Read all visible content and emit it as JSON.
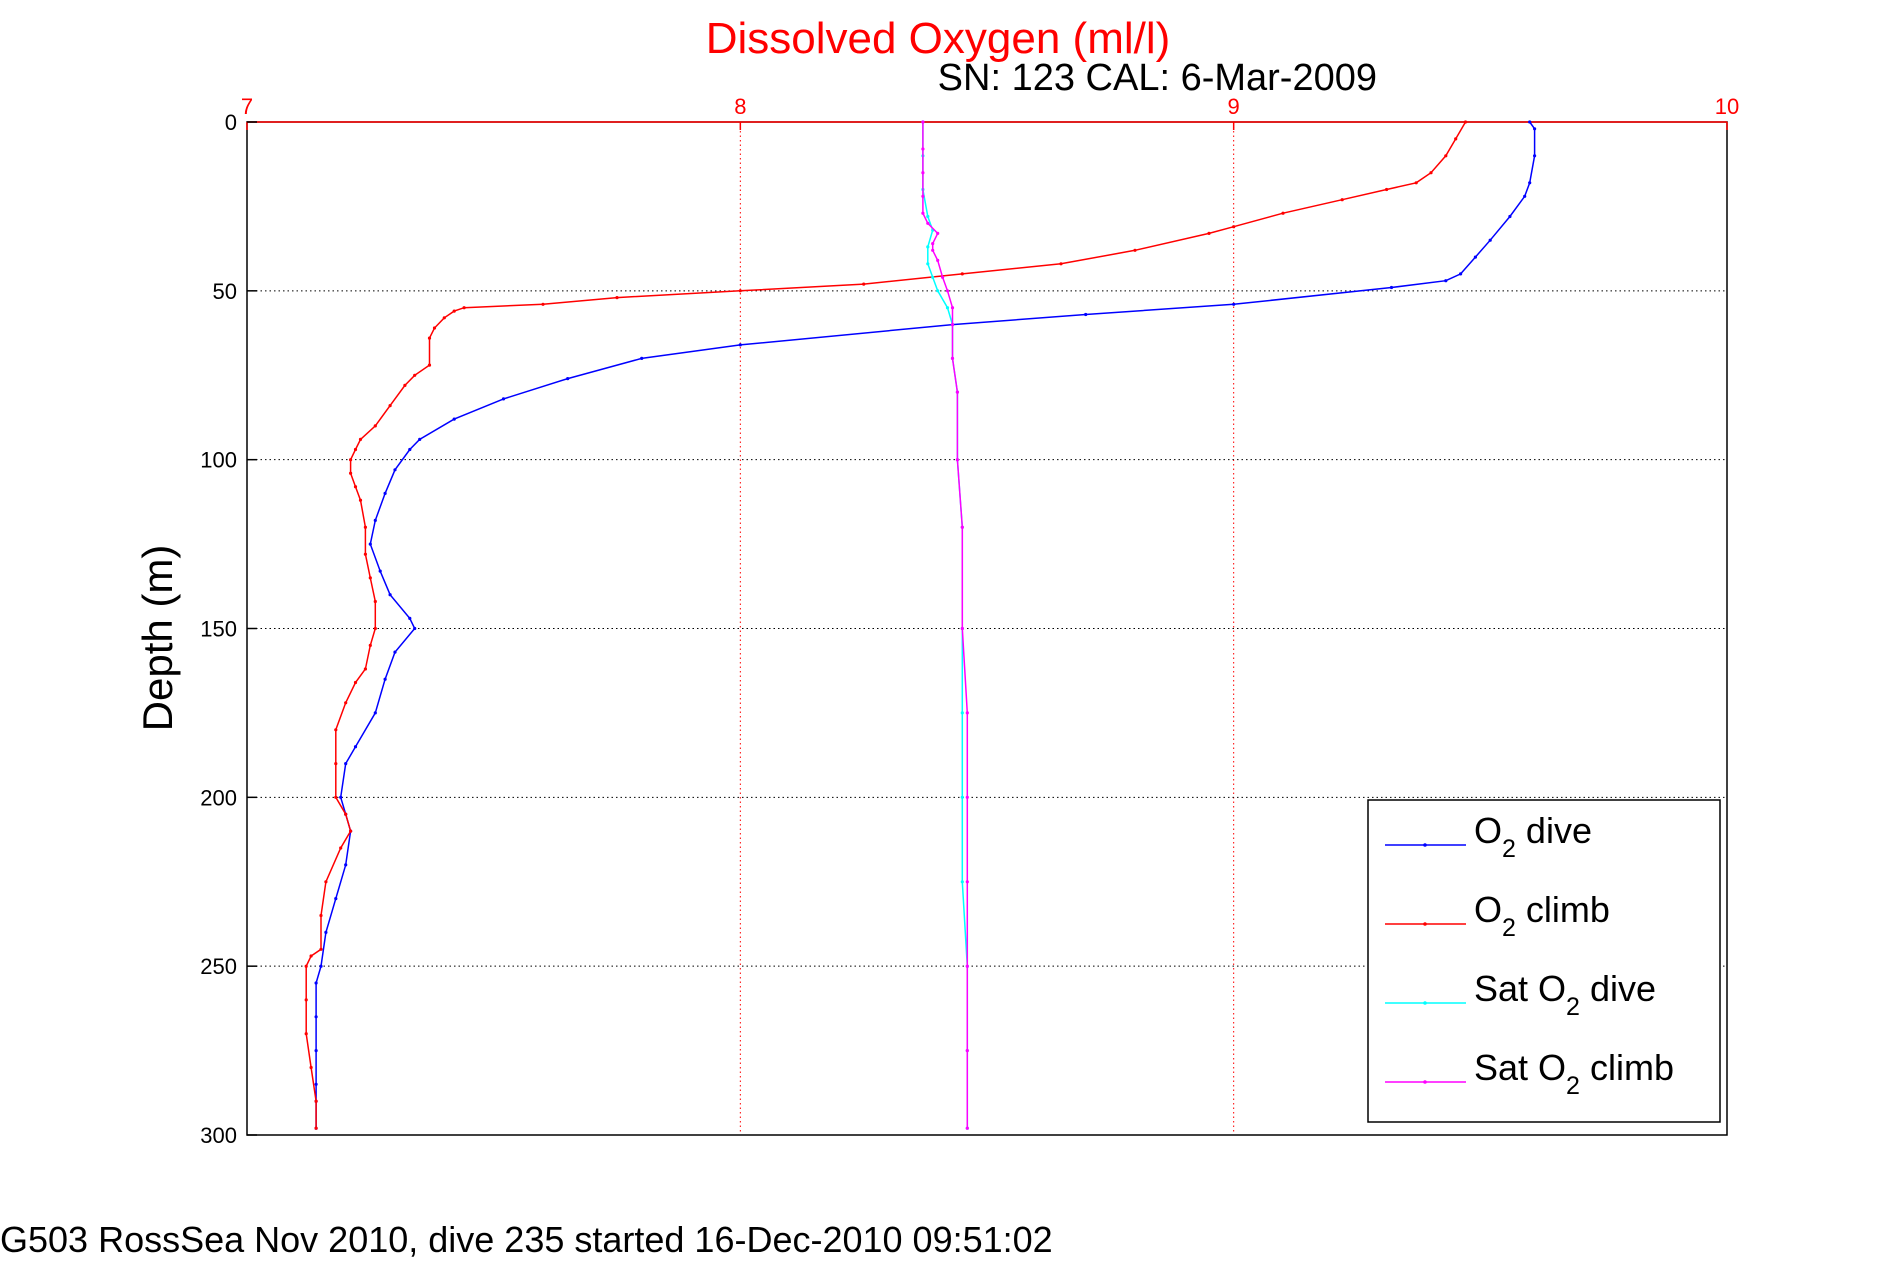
{
  "chart_data": {
    "type": "line",
    "title": "Dissolved Oxygen (ml/l)",
    "subtitle": "SN: 123  CAL: 6-Mar-2009",
    "ylabel": "Depth (m)",
    "footer": "G503 RossSea Nov 2010, dive 235 started 16-Dec-2010 09:51:02",
    "xlim": [
      7,
      10
    ],
    "ylim": [
      0,
      300
    ],
    "y_reversed": true,
    "x_axis_position": "top",
    "x_ticks": [
      "7",
      "8",
      "9",
      "10"
    ],
    "y_ticks": [
      "0",
      "50",
      "100",
      "150",
      "200",
      "250",
      "300"
    ],
    "grid": true,
    "legend_position": "bottom-right",
    "series": [
      {
        "name_prefix": "O",
        "name_sub": "2",
        "name_suffix": " dive",
        "color": "#0000ff",
        "points": [
          [
            9.6,
            0
          ],
          [
            9.61,
            2
          ],
          [
            9.61,
            10
          ],
          [
            9.6,
            18
          ],
          [
            9.59,
            22
          ],
          [
            9.56,
            28
          ],
          [
            9.52,
            35
          ],
          [
            9.49,
            40
          ],
          [
            9.46,
            45
          ],
          [
            9.43,
            47
          ],
          [
            9.32,
            49
          ],
          [
            9.0,
            54
          ],
          [
            8.7,
            57
          ],
          [
            8.43,
            60
          ],
          [
            8.0,
            66
          ],
          [
            7.8,
            70
          ],
          [
            7.65,
            76
          ],
          [
            7.52,
            82
          ],
          [
            7.42,
            88
          ],
          [
            7.35,
            94
          ],
          [
            7.33,
            97
          ],
          [
            7.3,
            103
          ],
          [
            7.28,
            110
          ],
          [
            7.26,
            118
          ],
          [
            7.25,
            125
          ],
          [
            7.27,
            133
          ],
          [
            7.29,
            140
          ],
          [
            7.33,
            147
          ],
          [
            7.34,
            150
          ],
          [
            7.3,
            157
          ],
          [
            7.28,
            165
          ],
          [
            7.26,
            175
          ],
          [
            7.22,
            185
          ],
          [
            7.2,
            190
          ],
          [
            7.19,
            200
          ],
          [
            7.2,
            205
          ],
          [
            7.21,
            210
          ],
          [
            7.2,
            220
          ],
          [
            7.18,
            230
          ],
          [
            7.16,
            240
          ],
          [
            7.15,
            250
          ],
          [
            7.14,
            255
          ],
          [
            7.14,
            265
          ],
          [
            7.14,
            275
          ],
          [
            7.14,
            285
          ],
          [
            7.14,
            290
          ],
          [
            7.14,
            298
          ]
        ]
      },
      {
        "name_prefix": "O",
        "name_sub": "2",
        "name_suffix": " climb",
        "color": "#ff0000",
        "points": [
          [
            9.47,
            0
          ],
          [
            9.45,
            5
          ],
          [
            9.43,
            10
          ],
          [
            9.4,
            15
          ],
          [
            9.37,
            18
          ],
          [
            9.31,
            20
          ],
          [
            9.22,
            23
          ],
          [
            9.1,
            27
          ],
          [
            9.0,
            31
          ],
          [
            8.95,
            33
          ],
          [
            8.8,
            38
          ],
          [
            8.65,
            42
          ],
          [
            8.45,
            45
          ],
          [
            8.25,
            48
          ],
          [
            8.0,
            50
          ],
          [
            7.75,
            52
          ],
          [
            7.6,
            54
          ],
          [
            7.44,
            55
          ],
          [
            7.42,
            56
          ],
          [
            7.4,
            58
          ],
          [
            7.38,
            61
          ],
          [
            7.37,
            64
          ],
          [
            7.37,
            72
          ],
          [
            7.34,
            75
          ],
          [
            7.32,
            78
          ],
          [
            7.29,
            84
          ],
          [
            7.26,
            90
          ],
          [
            7.23,
            94
          ],
          [
            7.22,
            97
          ],
          [
            7.21,
            100
          ],
          [
            7.21,
            104
          ],
          [
            7.22,
            108
          ],
          [
            7.23,
            112
          ],
          [
            7.24,
            120
          ],
          [
            7.24,
            128
          ],
          [
            7.25,
            135
          ],
          [
            7.26,
            142
          ],
          [
            7.26,
            150
          ],
          [
            7.25,
            155
          ],
          [
            7.24,
            162
          ],
          [
            7.22,
            166
          ],
          [
            7.2,
            172
          ],
          [
            7.18,
            180
          ],
          [
            7.18,
            190
          ],
          [
            7.18,
            200
          ],
          [
            7.2,
            205
          ],
          [
            7.21,
            210
          ],
          [
            7.19,
            215
          ],
          [
            7.16,
            225
          ],
          [
            7.15,
            235
          ],
          [
            7.15,
            245
          ],
          [
            7.13,
            247
          ],
          [
            7.12,
            250
          ],
          [
            7.12,
            260
          ],
          [
            7.12,
            270
          ],
          [
            7.13,
            280
          ],
          [
            7.14,
            290
          ],
          [
            7.14,
            298
          ]
        ]
      },
      {
        "name_prefix": "Sat O",
        "name_sub": "2",
        "name_suffix": " dive",
        "color": "#00ffff",
        "points": [
          [
            8.37,
            0
          ],
          [
            8.37,
            10
          ],
          [
            8.37,
            20
          ],
          [
            8.38,
            28
          ],
          [
            8.39,
            32
          ],
          [
            8.38,
            37
          ],
          [
            8.38,
            42
          ],
          [
            8.39,
            46
          ],
          [
            8.4,
            50
          ],
          [
            8.42,
            55
          ],
          [
            8.43,
            60
          ],
          [
            8.43,
            70
          ],
          [
            8.44,
            80
          ],
          [
            8.44,
            100
          ],
          [
            8.45,
            120
          ],
          [
            8.45,
            150
          ],
          [
            8.45,
            175
          ],
          [
            8.45,
            200
          ],
          [
            8.45,
            225
          ],
          [
            8.46,
            250
          ],
          [
            8.46,
            275
          ],
          [
            8.46,
            298
          ]
        ]
      },
      {
        "name_prefix": "Sat O",
        "name_sub": "2",
        "name_suffix": " climb",
        "color": "#ff00ff",
        "points": [
          [
            8.37,
            0
          ],
          [
            8.37,
            8
          ],
          [
            8.37,
            15
          ],
          [
            8.37,
            22
          ],
          [
            8.37,
            27
          ],
          [
            8.38,
            30
          ],
          [
            8.4,
            33
          ],
          [
            8.39,
            36
          ],
          [
            8.39,
            38
          ],
          [
            8.4,
            41
          ],
          [
            8.41,
            46
          ],
          [
            8.42,
            50
          ],
          [
            8.43,
            55
          ],
          [
            8.43,
            60
          ],
          [
            8.43,
            70
          ],
          [
            8.44,
            80
          ],
          [
            8.44,
            100
          ],
          [
            8.45,
            120
          ],
          [
            8.45,
            150
          ],
          [
            8.46,
            175
          ],
          [
            8.46,
            200
          ],
          [
            8.46,
            225
          ],
          [
            8.46,
            250
          ],
          [
            8.46,
            275
          ],
          [
            8.46,
            298
          ]
        ]
      }
    ]
  }
}
